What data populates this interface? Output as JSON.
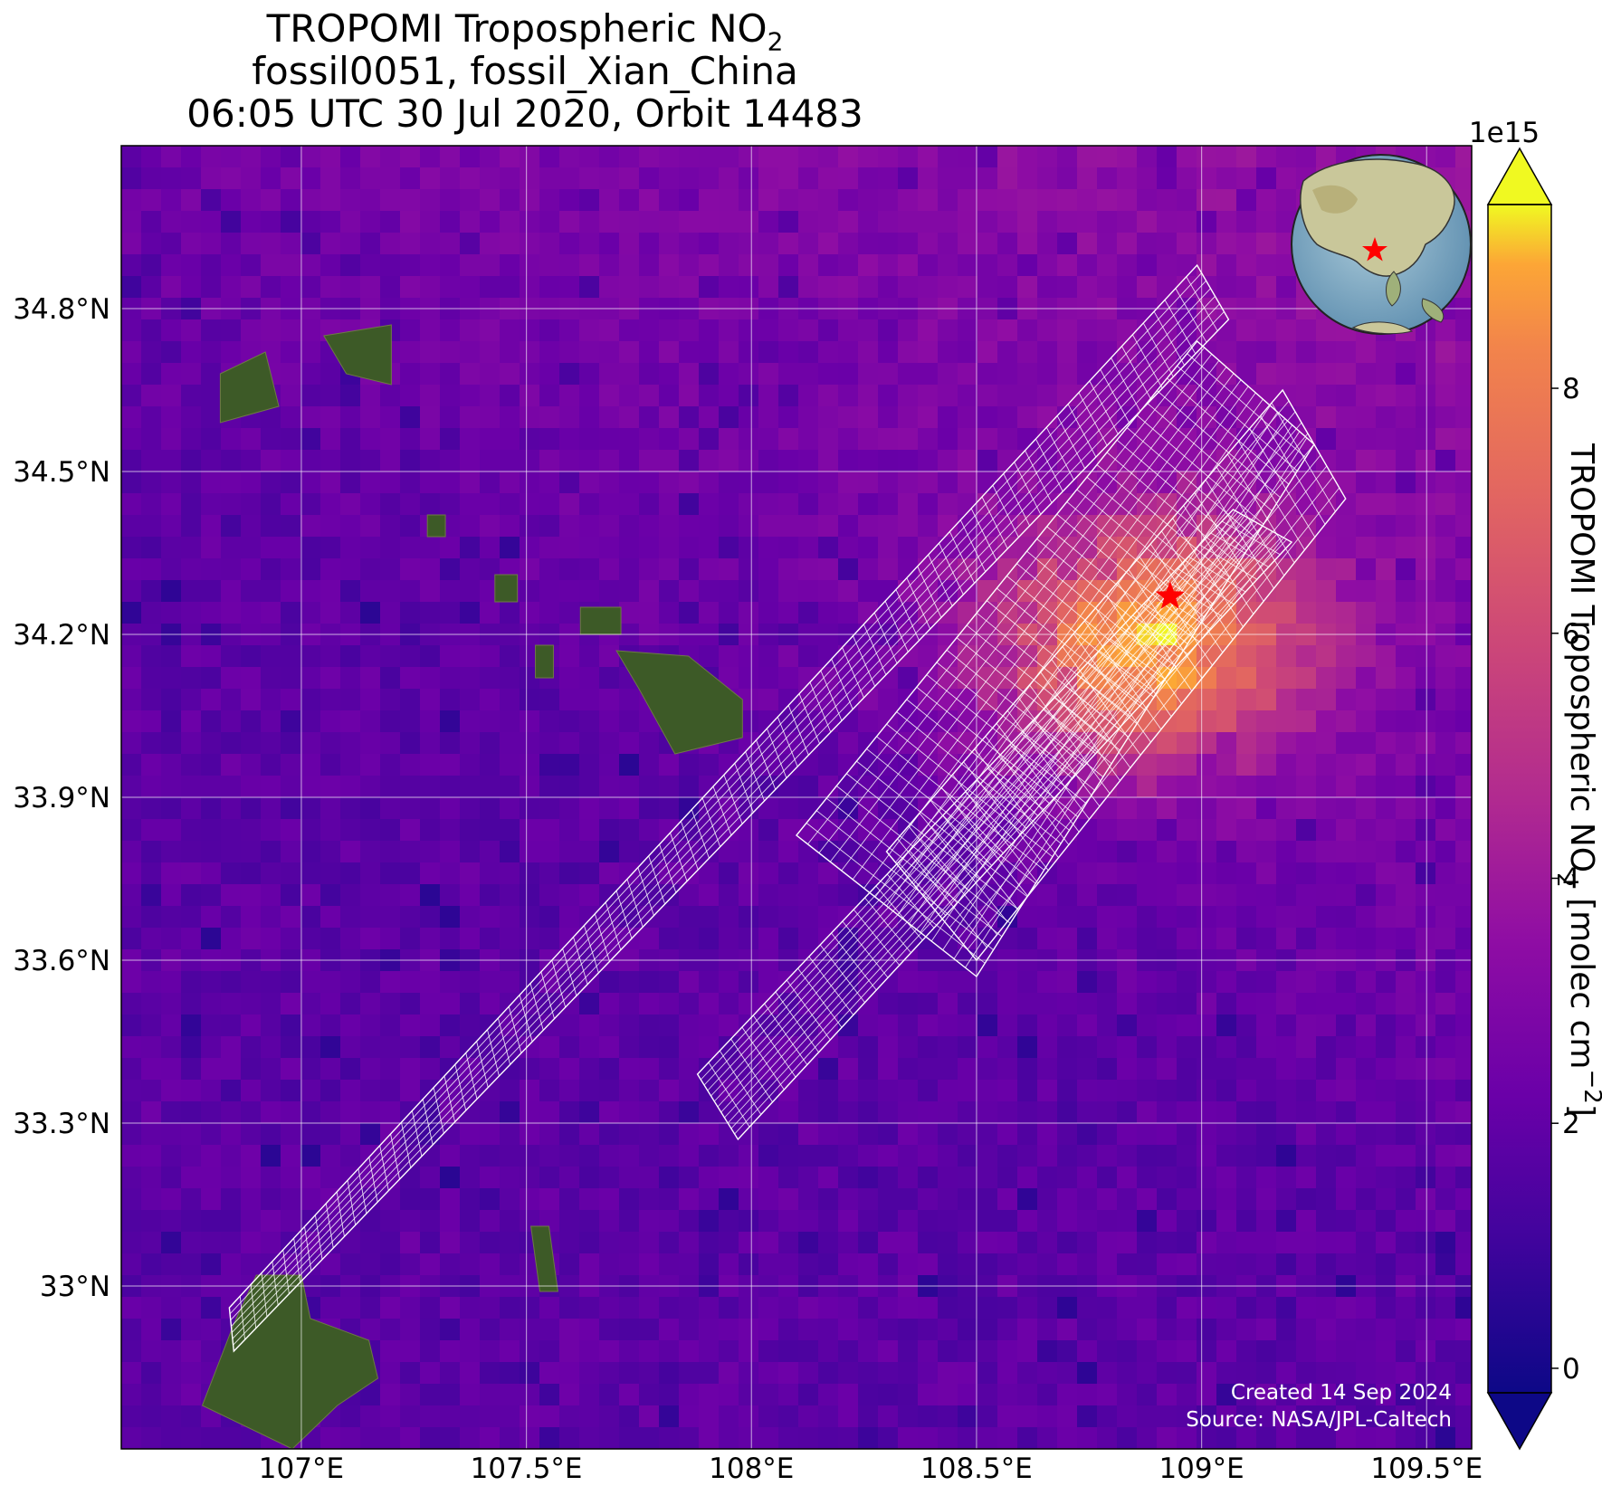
{
  "title": {
    "line1_prefix": "TROPOMI Tropospheric NO",
    "line1_sub": "2",
    "line2": "fossil0051, fossil_Xian_China",
    "line3": "06:05 UTC 30 Jul 2020, Orbit 14483"
  },
  "map": {
    "lon_range": [
      106.6,
      109.6
    ],
    "lat_range": [
      32.7,
      35.1
    ],
    "lon_ticks": [
      {
        "value": 107.0,
        "label": "107°E"
      },
      {
        "value": 107.5,
        "label": "107.5°E"
      },
      {
        "value": 108.0,
        "label": "108°E"
      },
      {
        "value": 108.5,
        "label": "108.5°E"
      },
      {
        "value": 109.0,
        "label": "109°E"
      },
      {
        "value": 109.5,
        "label": "109.5°E"
      }
    ],
    "lat_ticks": [
      {
        "value": 34.8,
        "label": "34.8°N"
      },
      {
        "value": 34.5,
        "label": "34.5°N"
      },
      {
        "value": 34.2,
        "label": "34.2°N"
      },
      {
        "value": 33.9,
        "label": "33.9°N"
      },
      {
        "value": 33.6,
        "label": "33.6°N"
      },
      {
        "value": 33.3,
        "label": "33.3°N"
      },
      {
        "value": 33.0,
        "label": "33°N"
      }
    ],
    "gridlines": true,
    "background_color": "#5a0fa8",
    "target": {
      "name": "fossil_Xian_China",
      "lon": 108.93,
      "lat": 34.27,
      "marker": "red-star",
      "color": "#ff0000"
    },
    "inset_globe": {
      "placement": "top-right",
      "marker": "red-star"
    }
  },
  "colorbar": {
    "label_prefix": "TROPOMI Tropospheric NO",
    "label_sub": "2",
    "label_unit": " [molec cm",
    "label_exp": "−2",
    "label_end": "]",
    "scale_note": "1e15",
    "range": [
      -0.2,
      9.5
    ],
    "ticks": [
      {
        "value": 0,
        "label": "0"
      },
      {
        "value": 2,
        "label": "2"
      },
      {
        "value": 4,
        "label": "4"
      },
      {
        "value": 6,
        "label": "6"
      },
      {
        "value": 8,
        "label": "8"
      }
    ],
    "colormap": "plasma",
    "extend": "both"
  },
  "footer": {
    "created": "Created 14 Sep 2024",
    "source": "Source: NASA/JPL-Caltech"
  },
  "chart_data": {
    "type": "heatmap",
    "title": "TROPOMI Tropospheric NO2 — fossil0051, fossil_Xian_China — 06:05 UTC 30 Jul 2020, Orbit 14483",
    "xlabel": "",
    "ylabel": "",
    "xlim": [
      106.6,
      109.6
    ],
    "ylim": [
      32.7,
      35.1
    ],
    "value_label": "TROPOMI Tropospheric NO2 [molec cm−2]",
    "value_scale": "1e15",
    "value_range": [
      -0.2,
      9.5
    ],
    "hotspot": {
      "lon": 108.88,
      "lat": 34.18,
      "approx_value": 9.0
    }
  }
}
